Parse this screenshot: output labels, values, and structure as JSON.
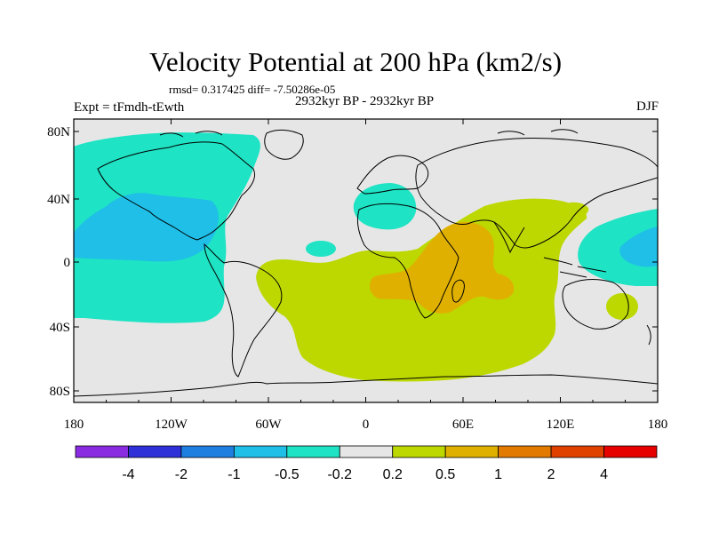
{
  "title": "Velocity Potential at 200 hPa (km2/s)",
  "stats": "rmsd= 0.317425  diff= -7.50286e-05",
  "subtitle": "2932kyr BP - 2932kyr BP",
  "experiment": "Expt = tFmdh-tEwth",
  "season": "DJF",
  "lat_labels": [
    "80N",
    "40N",
    "0",
    "40S",
    "80S"
  ],
  "lon_labels": [
    "180",
    "120W",
    "60W",
    "0",
    "60E",
    "120E",
    "180"
  ],
  "colorbar": {
    "colors": [
      "#8a2be2",
      "#3030d8",
      "#1e7fe0",
      "#1fbfe8",
      "#1ee3c4",
      "#e6e6e6",
      "#bcd800",
      "#e0b000",
      "#e27a00",
      "#e04000",
      "#e60000"
    ],
    "labels": [
      "-4",
      "-2",
      "-1",
      "-0.5",
      "-0.2",
      "0.2",
      "0.5",
      "1",
      "2",
      "4"
    ]
  }
}
